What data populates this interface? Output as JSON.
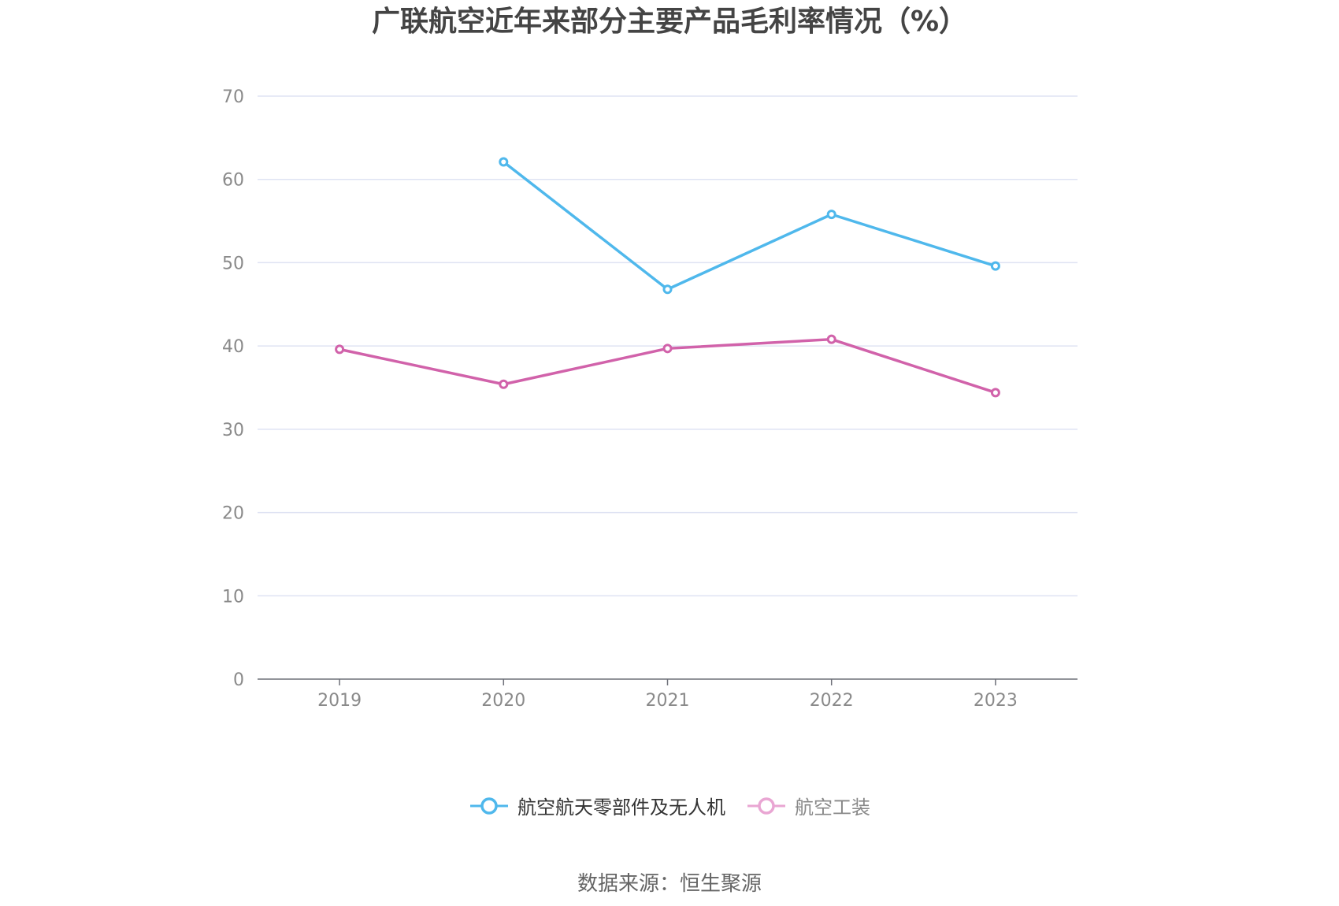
{
  "title": "广联航空近年来部分主要产品毛利率情况（%）",
  "source": "数据来源：恒生聚源",
  "chart_data": {
    "type": "line",
    "title": "广联航空近年来部分主要产品毛利率情况（%）",
    "x": [
      "2019",
      "2020",
      "2021",
      "2022",
      "2023"
    ],
    "ylim": [
      0,
      70
    ],
    "yticks": [
      0,
      10,
      20,
      30,
      40,
      50,
      60,
      70
    ],
    "grid": true,
    "legend_position": "bottom",
    "series": [
      {
        "name": "航空航天零部件及无人机",
        "color": "#4fb8ec",
        "values": [
          null,
          62.1,
          46.8,
          55.8,
          49.6
        ]
      },
      {
        "name": "航空工装",
        "color": "#d162aa",
        "legend_color": "#e9a6d3",
        "values": [
          39.6,
          35.4,
          39.7,
          40.8,
          34.4
        ]
      }
    ]
  }
}
